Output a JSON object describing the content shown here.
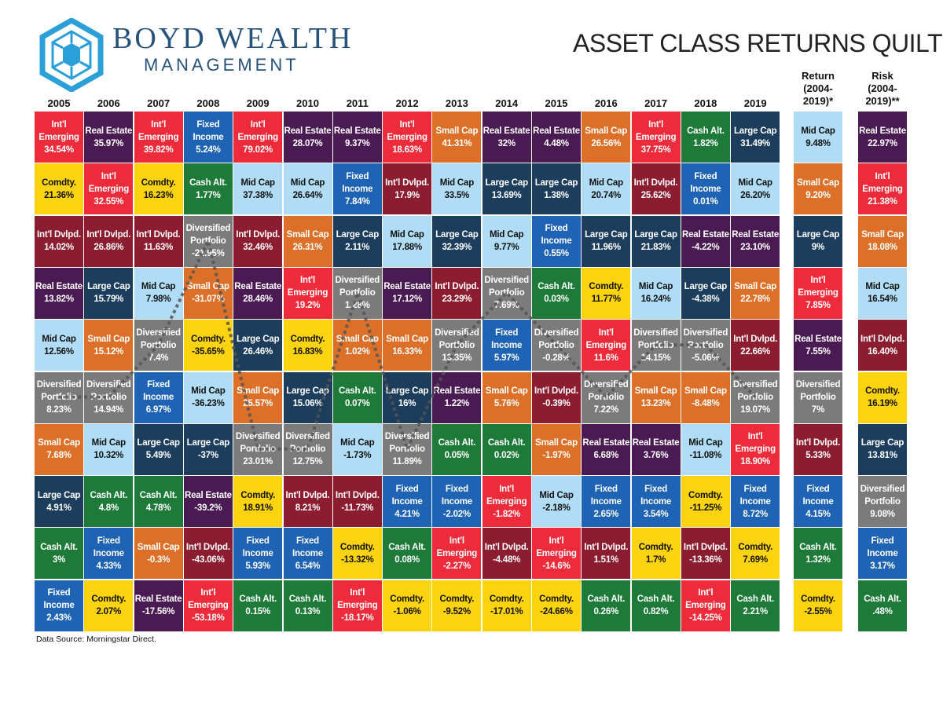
{
  "header": {
    "brand_name": "BOYD WEALTH",
    "brand_sub": "MANAGEMENT",
    "title": "ASSET CLASS RETURNS QUILT"
  },
  "footer": {
    "source": "Data Source: Morningstar Direct."
  },
  "colors": {
    "Int'l Emerging": "#ee2b3a",
    "Real Estate": "#4a1a52",
    "Fixed Income": "#1f63b4",
    "Small Cap": "#dc7028",
    "Cash Alt.": "#1e7a39",
    "Large Cap": "#1c3d5c",
    "Comdty.": "#fbd30e",
    "Mid Cap": "#b0ddf5",
    "Int'l Dvlpd.": "#8c1c2f",
    "Diversified Portfolio": "#7b7b7b",
    "dark_text_classes": [
      "Comdty.",
      "Mid Cap"
    ],
    "dark_text": "#111111",
    "diversified_path": "#555555"
  },
  "chart_data": {
    "type": "table",
    "title": "ASSET CLASS RETURNS QUILT",
    "columns": [
      "2005",
      "2006",
      "2007",
      "2008",
      "2009",
      "2010",
      "2011",
      "2012",
      "2013",
      "2014",
      "2015",
      "2016",
      "2017",
      "2018",
      "2019"
    ],
    "cells": [
      [
        [
          "Int'l\nEmerging",
          "34.54%"
        ],
        [
          "Comdty.",
          "21.36%"
        ],
        [
          "Int'l Dvlpd.",
          "14.02%"
        ],
        [
          "Real Estate",
          "13.82%"
        ],
        [
          "Mid Cap",
          "12.56%"
        ],
        [
          "Diversified\nPortfolio",
          "8.23%"
        ],
        [
          "Small Cap",
          "7.68%"
        ],
        [
          "Large Cap",
          "4.91%"
        ],
        [
          "Cash Alt.",
          "3%"
        ],
        [
          "Fixed\nIncome",
          "2.43%"
        ]
      ],
      [
        [
          "Real Estate",
          "35.97%"
        ],
        [
          "Int'l\nEmerging",
          "32.55%"
        ],
        [
          "Int'l Dvlpd.",
          "26.86%"
        ],
        [
          "Large Cap",
          "15.79%"
        ],
        [
          "Small Cap",
          "15.12%"
        ],
        [
          "Diversified\nPortfolio",
          "14.94%"
        ],
        [
          "Mid Cap",
          "10.32%"
        ],
        [
          "Cash Alt.",
          "4.8%"
        ],
        [
          "Fixed\nIncome",
          "4.33%"
        ],
        [
          "Comdty.",
          "2.07%"
        ]
      ],
      [
        [
          "Int'l\nEmerging",
          "39.82%"
        ],
        [
          "Comdty.",
          "16.23%"
        ],
        [
          "Int'l Dvlpd.",
          "11.63%"
        ],
        [
          "Mid Cap",
          "7.98%"
        ],
        [
          "Diversified\nPortfolio",
          "7.4%"
        ],
        [
          "Fixed\nIncome",
          "6.97%"
        ],
        [
          "Large Cap",
          "5.49%"
        ],
        [
          "Cash Alt.",
          "4.78%"
        ],
        [
          "Small Cap",
          "-0.3%"
        ],
        [
          "Real Estate",
          "-17.56%"
        ]
      ],
      [
        [
          "Fixed\nIncome",
          "5.24%"
        ],
        [
          "Cash Alt.",
          "1.77%"
        ],
        [
          "Diversified\nPortfolio",
          "-21.95%"
        ],
        [
          "Small Cap",
          "-31.07%"
        ],
        [
          "Comdty.",
          "-35.65%"
        ],
        [
          "Mid Cap",
          "-36.23%"
        ],
        [
          "Large Cap",
          "-37%"
        ],
        [
          "Real Estate",
          "-39.2%"
        ],
        [
          "Int'l Dvlpd.",
          "-43.06%"
        ],
        [
          "Int'l\nEmerging",
          "-53.18%"
        ]
      ],
      [
        [
          "Int'l\nEmerging",
          "79.02%"
        ],
        [
          "Mid Cap",
          "37.38%"
        ],
        [
          "Int'l Dvlpd.",
          "32.46%"
        ],
        [
          "Real Estate",
          "28.46%"
        ],
        [
          "Large Cap",
          "26.46%"
        ],
        [
          "Small Cap",
          "25.57%"
        ],
        [
          "Diversified\nPortfolio",
          "23.01%"
        ],
        [
          "Comdty.",
          "18.91%"
        ],
        [
          "Fixed\nIncome",
          "5.93%"
        ],
        [
          "Cash Alt.",
          "0.15%"
        ]
      ],
      [
        [
          "Real Estate",
          "28.07%"
        ],
        [
          "Mid Cap",
          "26.64%"
        ],
        [
          "Small Cap",
          "26.31%"
        ],
        [
          "Int'l\nEmerging",
          "19.2%"
        ],
        [
          "Comdty.",
          "16.83%"
        ],
        [
          "Large Cap",
          "15.06%"
        ],
        [
          "Diversified\nPortfolio",
          "12.75%"
        ],
        [
          "Int'l Dvlpd.",
          "8.21%"
        ],
        [
          "Fixed\nIncome",
          "6.54%"
        ],
        [
          "Cash Alt.",
          "0.13%"
        ]
      ],
      [
        [
          "Real Estate",
          "9.37%"
        ],
        [
          "Fixed\nIncome",
          "7.84%"
        ],
        [
          "Large Cap",
          "2.11%"
        ],
        [
          "Diversified\nPortfolio",
          "1.28%"
        ],
        [
          "Small Cap",
          "1.02%"
        ],
        [
          "Cash Alt.",
          "0.07%"
        ],
        [
          "Mid Cap",
          "-1.73%"
        ],
        [
          "Int'l Dvlpd.",
          "-11.73%"
        ],
        [
          "Comdty.",
          "-13.32%"
        ],
        [
          "Int'l\nEmerging",
          "-18.17%"
        ]
      ],
      [
        [
          "Int'l\nEmerging",
          "18.63%"
        ],
        [
          "Int'l Dvlpd.",
          "17.9%"
        ],
        [
          "Mid Cap",
          "17.88%"
        ],
        [
          "Real Estate",
          "17.12%"
        ],
        [
          "Small Cap",
          "16.33%"
        ],
        [
          "Large Cap",
          "16%"
        ],
        [
          "Diversified\nPortfolio",
          "11.89%"
        ],
        [
          "Fixed\nIncome",
          "4.21%"
        ],
        [
          "Cash Alt.",
          "0.08%"
        ],
        [
          "Comdty.",
          "-1.06%"
        ]
      ],
      [
        [
          "Small Cap",
          "41.31%"
        ],
        [
          "Mid Cap",
          "33.5%"
        ],
        [
          "Large Cap",
          "32.39%"
        ],
        [
          "Int'l Dvlpd.",
          "23.29%"
        ],
        [
          "Diversified\nPortfolio",
          "13.35%"
        ],
        [
          "Real Estate",
          "1.22%"
        ],
        [
          "Cash Alt.",
          "0.05%"
        ],
        [
          "Fixed\nIncome",
          "-2.02%"
        ],
        [
          "Int'l\nEmerging",
          "-2.27%"
        ],
        [
          "Comdty.",
          "-9.52%"
        ]
      ],
      [
        [
          "Real Estate",
          "32%"
        ],
        [
          "Large Cap",
          "13.69%"
        ],
        [
          "Mid Cap",
          "9.77%"
        ],
        [
          "Diversified\nPortfolio",
          "7.69%"
        ],
        [
          "Fixed\nIncome",
          "5.97%"
        ],
        [
          "Small Cap",
          "5.76%"
        ],
        [
          "Cash Alt.",
          "0.02%"
        ],
        [
          "Int'l\nEmerging",
          "-1.82%"
        ],
        [
          "Int'l Dvlpd.",
          "-4.48%"
        ],
        [
          "Comdty.",
          "-17.01%"
        ]
      ],
      [
        [
          "Real Estate",
          "4.48%"
        ],
        [
          "Large Cap",
          "1.38%"
        ],
        [
          "Fixed\nIncome",
          "0.55%"
        ],
        [
          "Cash Alt.",
          "0.03%"
        ],
        [
          "Diversified\nPortfolio",
          "-0.28%"
        ],
        [
          "Int'l Dvlpd.",
          "-0.39%"
        ],
        [
          "Small Cap",
          "-1.97%"
        ],
        [
          "Mid Cap",
          "-2.18%"
        ],
        [
          "Int'l\nEmerging",
          "-14.6%"
        ],
        [
          "Comdty.",
          "-24.66%"
        ]
      ],
      [
        [
          "Small Cap",
          "26.56%"
        ],
        [
          "Mid Cap",
          "20.74%"
        ],
        [
          "Large Cap",
          "11.96%"
        ],
        [
          "Comdty.",
          "11.77%"
        ],
        [
          "Int'l\nEmerging",
          "11.6%"
        ],
        [
          "Diversified\nPortfolio",
          "7.22%"
        ],
        [
          "Real Estate",
          "6.68%"
        ],
        [
          "Fixed\nIncome",
          "2.65%"
        ],
        [
          "Int'l Dvlpd.",
          "1.51%"
        ],
        [
          "Cash Alt.",
          "0.26%"
        ]
      ],
      [
        [
          "Int'l\nEmerging",
          "37.75%"
        ],
        [
          "Int'l Dvlpd.",
          "25.62%"
        ],
        [
          "Large Cap",
          "21.83%"
        ],
        [
          "Mid Cap",
          "16.24%"
        ],
        [
          "Diversified\nPortfolio",
          "14.15%"
        ],
        [
          "Small Cap",
          "13.23%"
        ],
        [
          "Real Estate",
          "3.76%"
        ],
        [
          "Fixed\nIncome",
          "3.54%"
        ],
        [
          "Comdty.",
          "1.7%"
        ],
        [
          "Cash Alt.",
          "0.82%"
        ]
      ],
      [
        [
          "Cash Alt.",
          "1.82%"
        ],
        [
          "Fixed\nIncome",
          "0.01%"
        ],
        [
          "Real Estate",
          "-4.22%"
        ],
        [
          "Large Cap",
          "-4.38%"
        ],
        [
          "Diversified\nPortfolio",
          "-5.06%"
        ],
        [
          "Small Cap",
          "-8.48%"
        ],
        [
          "Mid Cap",
          "-11.08%"
        ],
        [
          "Comdty.",
          "-11.25%"
        ],
        [
          "Int'l Dvlpd.",
          "-13.36%"
        ],
        [
          "Int'l\nEmerging",
          "-14.25%"
        ]
      ],
      [
        [
          "Large Cap",
          "31.49%"
        ],
        [
          "Mid Cap",
          "26.20%"
        ],
        [
          "Real Estate",
          "23.10%"
        ],
        [
          "Small Cap",
          "22.78%"
        ],
        [
          "Int'l Dvlpd.",
          "22.66%"
        ],
        [
          "Diversified\nPortfolio",
          "19.07%"
        ],
        [
          "Int'l\nEmerging",
          "18.90%"
        ],
        [
          "Fixed\nIncome",
          "8.72%"
        ],
        [
          "Comdty.",
          "7.69%"
        ],
        [
          "Cash Alt.",
          "2.21%"
        ]
      ]
    ],
    "summary_columns": [
      {
        "header": "Return\n(2004-\n2019)*",
        "cells": [
          [
            "Mid Cap",
            "9.48%"
          ],
          [
            "Small Cap",
            "9.20%"
          ],
          [
            "Large Cap",
            "9%"
          ],
          [
            "Int'l\nEmerging",
            "7.85%"
          ],
          [
            "Real Estate",
            "7.55%"
          ],
          [
            "Diversified\nPortfolio",
            "7%"
          ],
          [
            "Int'l Dvlpd.",
            "5.33%"
          ],
          [
            "Fixed\nIncome",
            "4.15%"
          ],
          [
            "Cash Alt.",
            "1.32%"
          ],
          [
            "Comdty.",
            "-2.55%"
          ]
        ]
      },
      {
        "header": "Risk\n(2004-\n2019)**",
        "cells": [
          [
            "Real Estate",
            "22.97%"
          ],
          [
            "Int'l\nEmerging",
            "21.38%"
          ],
          [
            "Small Cap",
            "18.08%"
          ],
          [
            "Mid Cap",
            "16.54%"
          ],
          [
            "Int'l Dvlpd.",
            "16.40%"
          ],
          [
            "Comdty.",
            "16.19%"
          ],
          [
            "Large Cap",
            "13.81%"
          ],
          [
            "Diversified\nPortfolio",
            "9.08%"
          ],
          [
            "Fixed\nIncome",
            "3.17%"
          ],
          [
            "Cash Alt.",
            ".48%"
          ]
        ]
      }
    ]
  }
}
